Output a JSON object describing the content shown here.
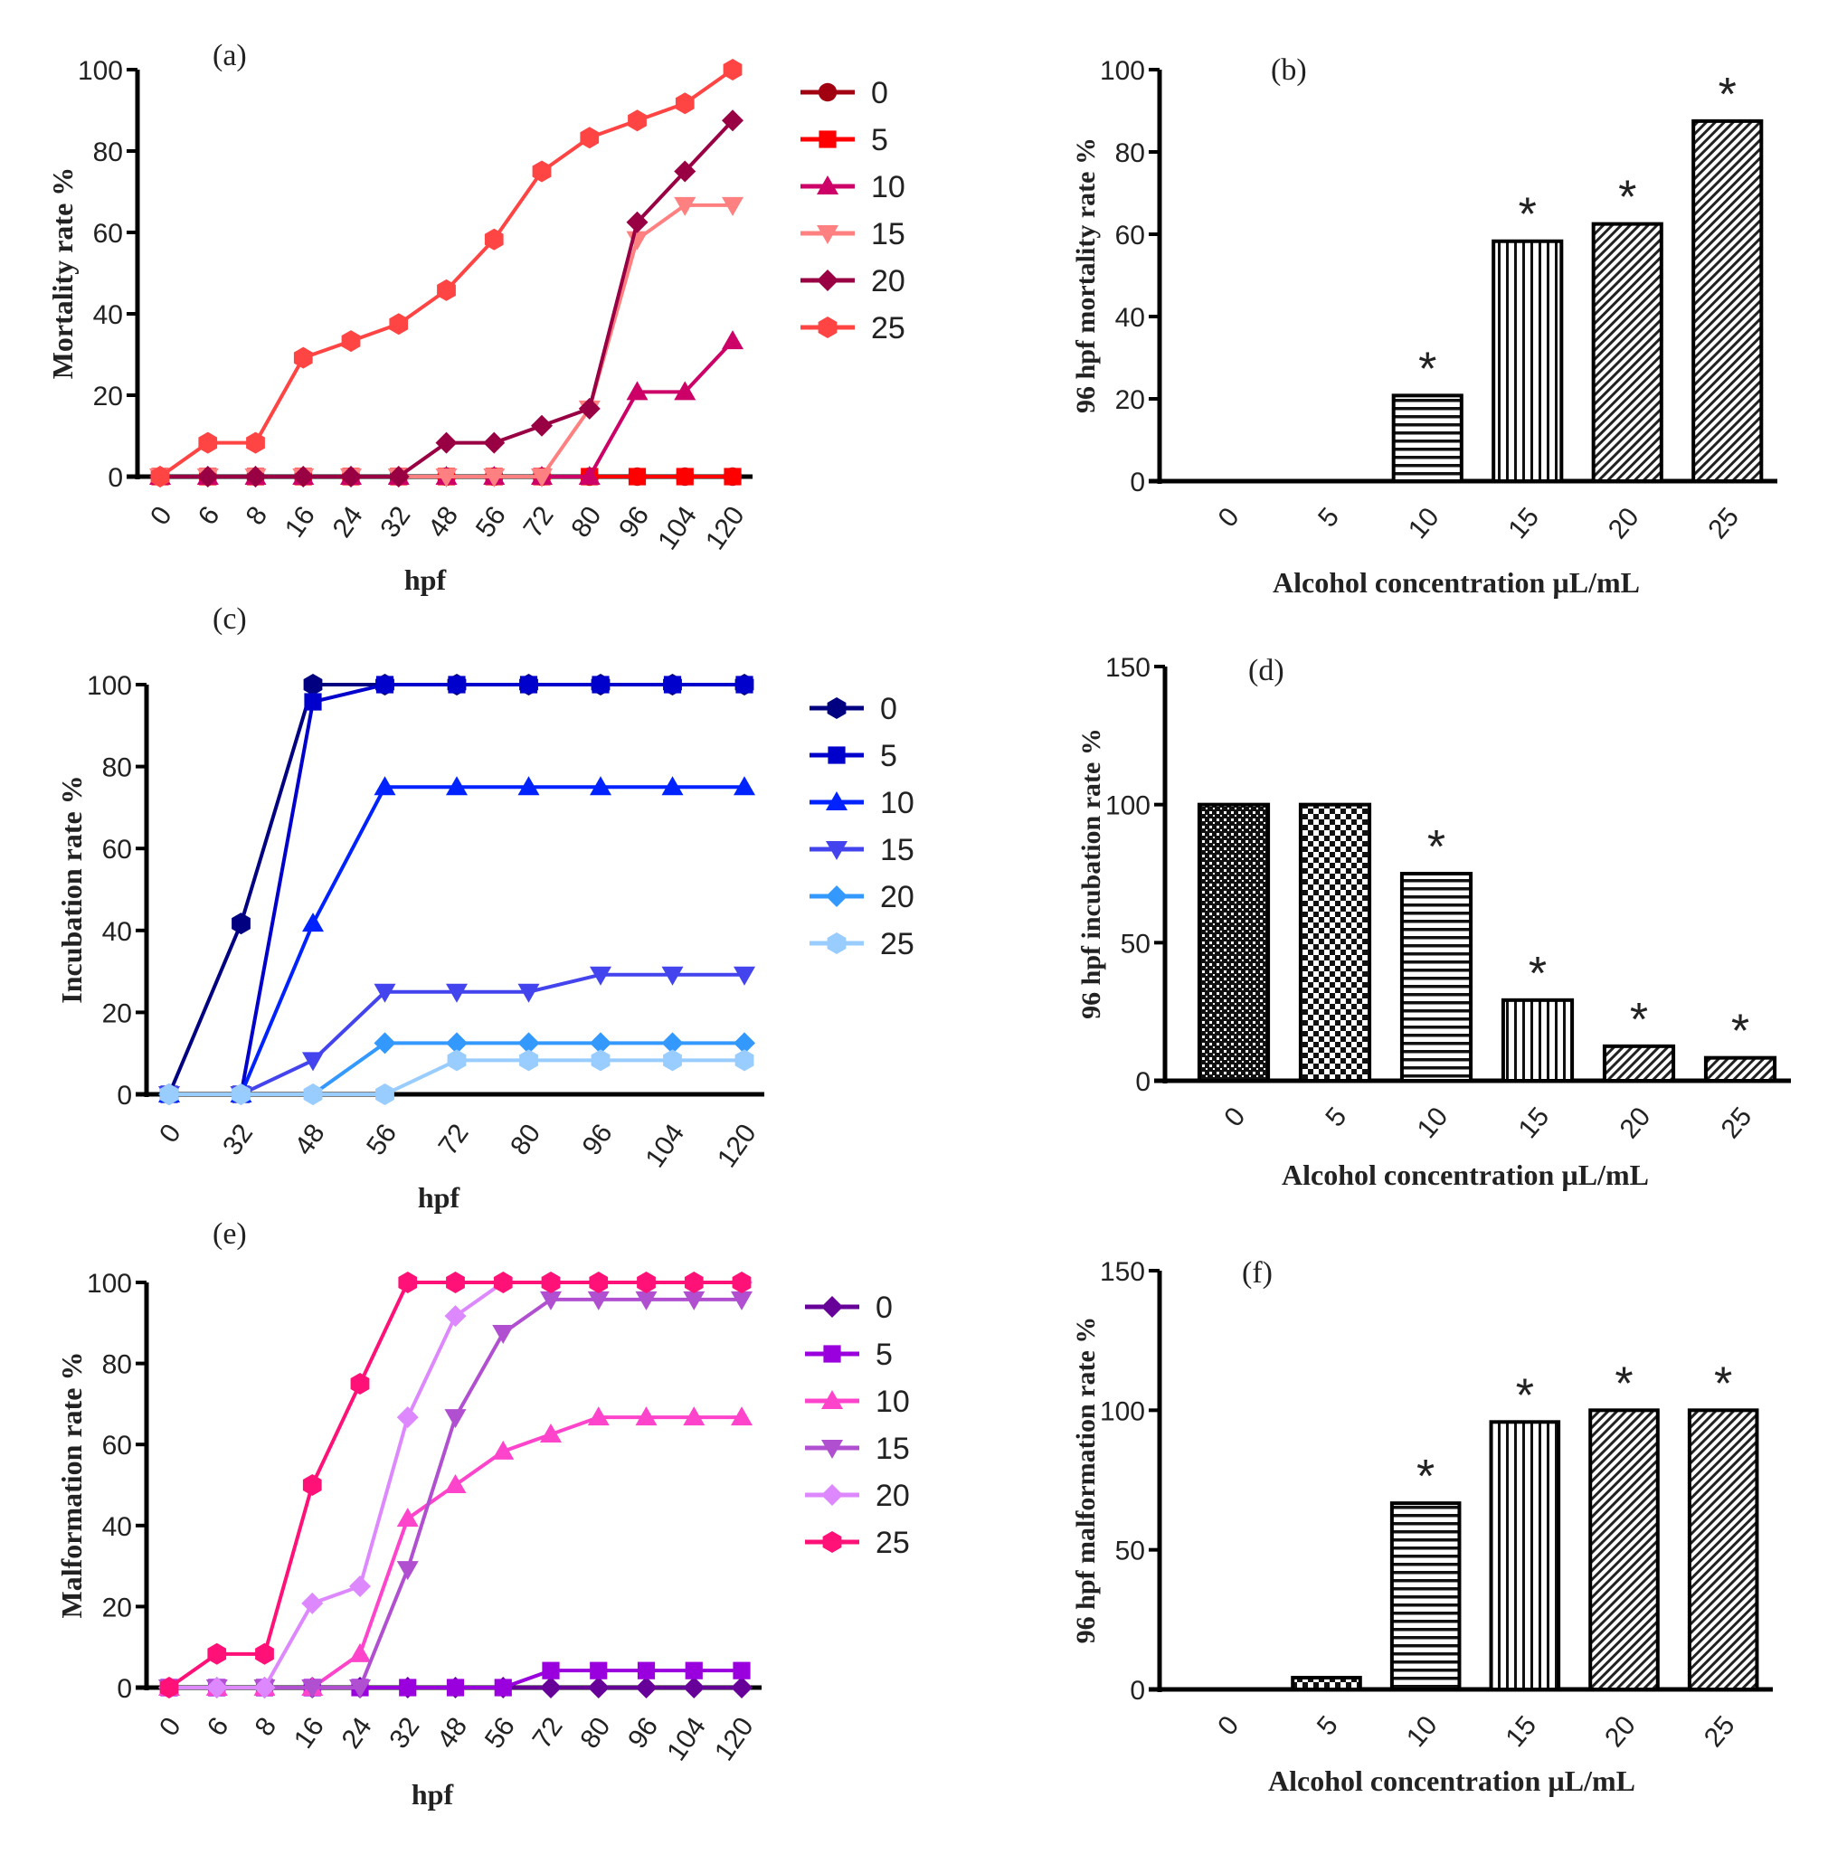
{
  "chart_data": [
    {
      "panel": "(a)",
      "type": "line",
      "xlabel": "hpf",
      "ylabel": "Mortality rate %",
      "ylim": [
        0,
        100
      ],
      "yticks": [
        0,
        20,
        40,
        60,
        80,
        100
      ],
      "categories": [
        "0",
        "6",
        "8",
        "16",
        "24",
        "32",
        "48",
        "56",
        "72",
        "80",
        "96",
        "104",
        "120"
      ],
      "series": [
        {
          "name": "0",
          "color": "#a00010",
          "marker": "circle",
          "values": [
            0,
            0,
            0,
            0,
            0,
            0,
            0,
            0,
            0,
            0,
            0,
            0,
            0
          ]
        },
        {
          "name": "5",
          "color": "#ff0000",
          "marker": "square",
          "values": [
            0,
            0,
            0,
            0,
            0,
            0,
            0,
            0,
            0,
            0,
            0,
            0,
            0
          ]
        },
        {
          "name": "10",
          "color": "#cc0066",
          "marker": "triangle-up",
          "values": [
            0,
            0,
            0,
            0,
            0,
            0,
            0,
            0,
            0,
            0,
            20.8,
            20.8,
            33.3
          ]
        },
        {
          "name": "15",
          "color": "#ff8080",
          "marker": "triangle-down",
          "values": [
            0,
            0,
            0,
            0,
            0,
            0,
            0,
            0,
            0,
            16.7,
            58.3,
            66.7,
            66.7
          ]
        },
        {
          "name": "20",
          "color": "#990044",
          "marker": "diamond",
          "values": [
            0,
            0,
            0,
            0,
            0,
            0,
            8.3,
            8.3,
            12.5,
            16.7,
            62.5,
            75,
            87.5
          ]
        },
        {
          "name": "25",
          "color": "#ff4444",
          "marker": "hexagon",
          "values": [
            0,
            8.3,
            8.3,
            29.2,
            33.3,
            37.5,
            45.8,
            58.3,
            75,
            83.3,
            87.5,
            91.7,
            100
          ]
        }
      ]
    },
    {
      "panel": "(b)",
      "type": "bar",
      "xlabel": "Alcohol concentration µL/mL",
      "ylabel": "96 hpf mortality rate %",
      "ylim": [
        0,
        100
      ],
      "yticks": [
        0,
        20,
        40,
        60,
        80,
        100
      ],
      "categories": [
        "0",
        "5",
        "10",
        "15",
        "20",
        "25"
      ],
      "values": [
        0,
        0,
        20.8,
        58.3,
        62.5,
        87.5
      ],
      "annotations": [
        "",
        "",
        "*",
        "*",
        "*",
        "*"
      ],
      "patterns": [
        "checker",
        "checker",
        "hlines",
        "vlines",
        "diag",
        "diag"
      ]
    },
    {
      "panel": "(c)",
      "type": "line",
      "xlabel": "hpf",
      "ylabel": "Incubation rate %",
      "ylim": [
        0,
        100
      ],
      "yticks": [
        0,
        20,
        40,
        60,
        80,
        100
      ],
      "categories": [
        "0",
        "32",
        "48",
        "56",
        "72",
        "80",
        "96",
        "104",
        "120"
      ],
      "series": [
        {
          "name": "0",
          "color": "#000080",
          "marker": "hexagon",
          "values": [
            0,
            41.7,
            100,
            100,
            100,
            100,
            100,
            100,
            100
          ]
        },
        {
          "name": "5",
          "color": "#0000cc",
          "marker": "square",
          "values": [
            0,
            0,
            95.8,
            100,
            100,
            100,
            100,
            100,
            100
          ]
        },
        {
          "name": "10",
          "color": "#0022ff",
          "marker": "triangle-up",
          "values": [
            0,
            0,
            41.7,
            75,
            75,
            75,
            75,
            75,
            75
          ]
        },
        {
          "name": "15",
          "color": "#4444ee",
          "marker": "triangle-down",
          "values": [
            0,
            0,
            8.3,
            25,
            25,
            25,
            29.2,
            29.2,
            29.2
          ]
        },
        {
          "name": "20",
          "color": "#3399ff",
          "marker": "diamond",
          "values": [
            0,
            0,
            0,
            12.5,
            12.5,
            12.5,
            12.5,
            12.5,
            12.5
          ]
        },
        {
          "name": "25",
          "color": "#99ccff",
          "marker": "hexagon",
          "values": [
            0,
            0,
            0,
            0,
            8.3,
            8.3,
            8.3,
            8.3,
            8.3
          ]
        }
      ]
    },
    {
      "panel": "(d)",
      "type": "bar",
      "xlabel": "Alcohol concentration µL/mL",
      "ylabel": "96 hpf incubation rate %",
      "ylim": [
        0,
        150
      ],
      "yticks": [
        0,
        50,
        100,
        150
      ],
      "categories": [
        "0",
        "5",
        "10",
        "15",
        "20",
        "25"
      ],
      "values": [
        100,
        100,
        75,
        29.2,
        12.5,
        8.3
      ],
      "annotations": [
        "",
        "",
        "*",
        "*",
        "*",
        "*"
      ],
      "patterns": [
        "finecheck",
        "checker",
        "hlines",
        "vlines",
        "diag",
        "diag"
      ]
    },
    {
      "panel": "(e)",
      "type": "line",
      "xlabel": "hpf",
      "ylabel": "Malformation rate %",
      "ylim": [
        0,
        100
      ],
      "yticks": [
        0,
        20,
        40,
        60,
        80,
        100
      ],
      "categories": [
        "0",
        "6",
        "8",
        "16",
        "24",
        "32",
        "48",
        "56",
        "72",
        "80",
        "96",
        "104",
        "120"
      ],
      "series": [
        {
          "name": "0",
          "color": "#660099",
          "marker": "diamond",
          "values": [
            0,
            0,
            0,
            0,
            0,
            0,
            0,
            0,
            0,
            0,
            0,
            0,
            0
          ]
        },
        {
          "name": "5",
          "color": "#9900dd",
          "marker": "square",
          "values": [
            0,
            0,
            0,
            0,
            0,
            0,
            0,
            0,
            4.2,
            4.2,
            4.2,
            4.2,
            4.2
          ]
        },
        {
          "name": "10",
          "color": "#ff44cc",
          "marker": "triangle-up",
          "values": [
            0,
            0,
            0,
            0,
            8.3,
            41.7,
            50,
            58.3,
            62.5,
            66.7,
            66.7,
            66.7,
            66.7
          ]
        },
        {
          "name": "15",
          "color": "#b050d0",
          "marker": "triangle-down",
          "values": [
            0,
            0,
            0,
            0,
            0,
            29.2,
            66.7,
            87.5,
            95.8,
            95.8,
            95.8,
            95.8,
            95.8
          ]
        },
        {
          "name": "20",
          "color": "#dd88ff",
          "marker": "diamond",
          "values": [
            0,
            0,
            0,
            20.8,
            25,
            66.7,
            91.7,
            100,
            100,
            100,
            100,
            100,
            100
          ]
        },
        {
          "name": "25",
          "color": "#ff1177",
          "marker": "hexagon",
          "values": [
            0,
            8.3,
            8.3,
            50,
            75,
            100,
            100,
            100,
            100,
            100,
            100,
            100,
            100
          ]
        }
      ]
    },
    {
      "panel": "(f)",
      "type": "bar",
      "xlabel": "Alcohol concentration µL/mL",
      "ylabel": "96 hpf malformation rate %",
      "ylim": [
        0,
        150
      ],
      "yticks": [
        0,
        50,
        100,
        150
      ],
      "categories": [
        "0",
        "5",
        "10",
        "15",
        "20",
        "25"
      ],
      "values": [
        0,
        4.2,
        66.7,
        95.8,
        100,
        100
      ],
      "annotations": [
        "",
        "",
        "*",
        "*",
        "*",
        "*"
      ],
      "patterns": [
        "checker",
        "checker",
        "hlines",
        "vlines",
        "diag",
        "diag"
      ]
    }
  ]
}
